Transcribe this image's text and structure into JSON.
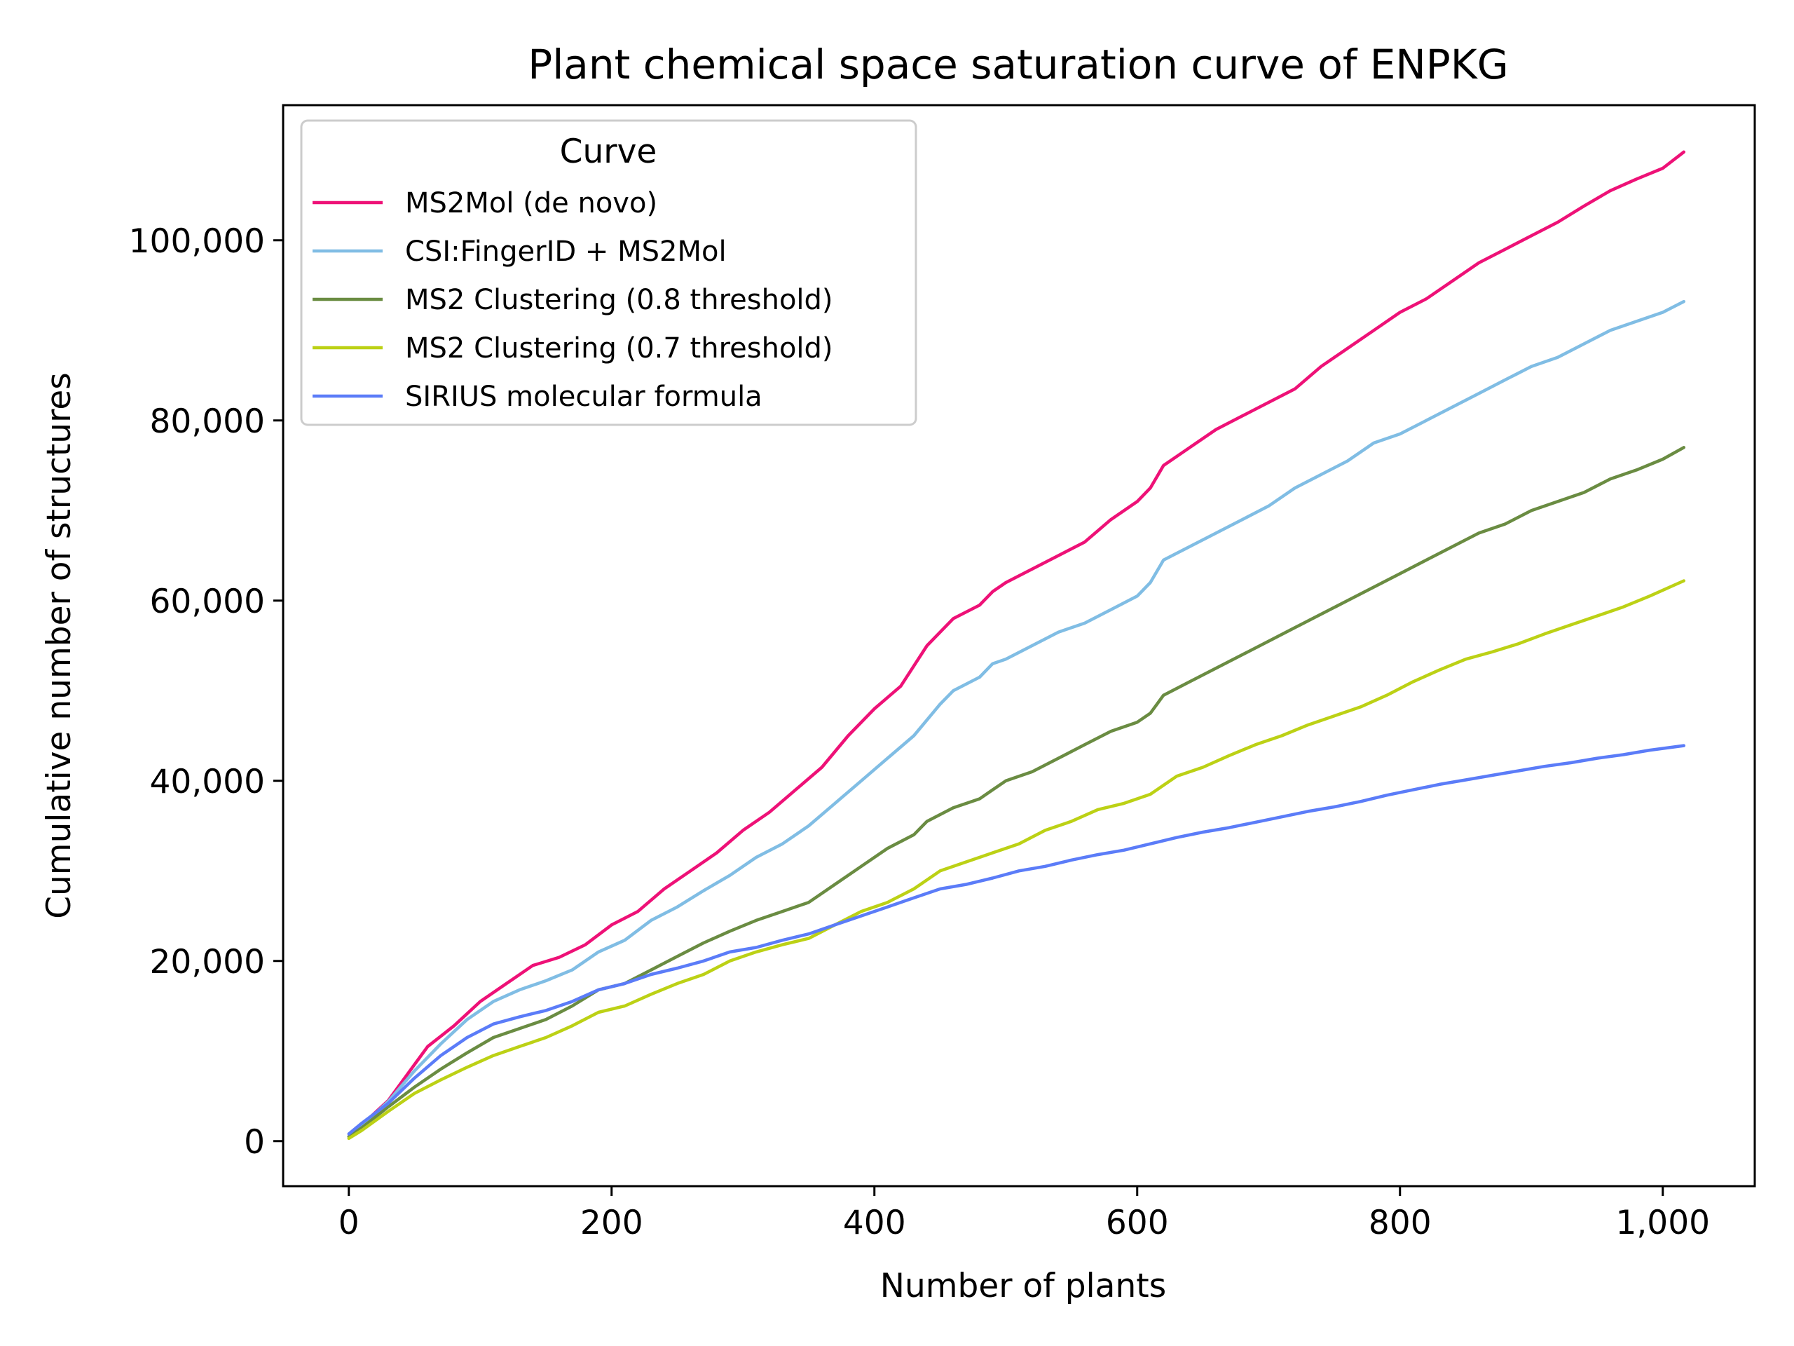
{
  "chart_data": {
    "type": "line",
    "title": "Plant chemical space saturation curve of ENPKG",
    "xlabel": "Number of plants",
    "ylabel": "Cumulative number of structures",
    "xlim": [
      -50,
      1070
    ],
    "ylim": [
      -5000,
      115000
    ],
    "xticks": [
      0,
      200,
      400,
      600,
      800,
      1000
    ],
    "xtick_labels": [
      "0",
      "200",
      "400",
      "600",
      "800",
      "1,000"
    ],
    "yticks": [
      0,
      20000,
      40000,
      60000,
      80000,
      100000
    ],
    "ytick_labels": [
      "0",
      "20,000",
      "40,000",
      "60,000",
      "80,000",
      "100,000"
    ],
    "grid": false,
    "legend": {
      "title": "Curve",
      "position": "top-left"
    },
    "series": [
      {
        "name": "MS2Mol (de novo)",
        "color": "#ee1177",
        "points": [
          [
            0,
            500
          ],
          [
            10,
            1800
          ],
          [
            30,
            4500
          ],
          [
            50,
            8500
          ],
          [
            60,
            10500
          ],
          [
            80,
            12800
          ],
          [
            100,
            15500
          ],
          [
            120,
            17500
          ],
          [
            140,
            19500
          ],
          [
            160,
            20400
          ],
          [
            180,
            21800
          ],
          [
            200,
            24000
          ],
          [
            220,
            25500
          ],
          [
            240,
            28000
          ],
          [
            260,
            30000
          ],
          [
            280,
            32000
          ],
          [
            300,
            34500
          ],
          [
            320,
            36500
          ],
          [
            340,
            39000
          ],
          [
            360,
            41500
          ],
          [
            380,
            45000
          ],
          [
            400,
            48000
          ],
          [
            420,
            50500
          ],
          [
            440,
            55000
          ],
          [
            460,
            58000
          ],
          [
            480,
            59500
          ],
          [
            490,
            61000
          ],
          [
            500,
            62000
          ],
          [
            520,
            63500
          ],
          [
            540,
            65000
          ],
          [
            560,
            66500
          ],
          [
            580,
            69000
          ],
          [
            600,
            71000
          ],
          [
            610,
            72500
          ],
          [
            620,
            75000
          ],
          [
            640,
            77000
          ],
          [
            660,
            79000
          ],
          [
            680,
            80500
          ],
          [
            700,
            82000
          ],
          [
            720,
            83500
          ],
          [
            740,
            86000
          ],
          [
            760,
            88000
          ],
          [
            780,
            90000
          ],
          [
            800,
            92000
          ],
          [
            820,
            93500
          ],
          [
            840,
            95500
          ],
          [
            860,
            97500
          ],
          [
            880,
            99000
          ],
          [
            900,
            100500
          ],
          [
            920,
            102000
          ],
          [
            940,
            103800
          ],
          [
            960,
            105500
          ],
          [
            980,
            106800
          ],
          [
            1000,
            108000
          ],
          [
            1016,
            109800
          ]
        ]
      },
      {
        "name": "CSI:FingerID + MS2Mol",
        "color": "#80bde4",
        "points": [
          [
            0,
            500
          ],
          [
            10,
            1700
          ],
          [
            30,
            4400
          ],
          [
            50,
            7800
          ],
          [
            70,
            10800
          ],
          [
            90,
            13500
          ],
          [
            110,
            15500
          ],
          [
            130,
            16800
          ],
          [
            150,
            17800
          ],
          [
            170,
            19000
          ],
          [
            190,
            21000
          ],
          [
            210,
            22300
          ],
          [
            230,
            24500
          ],
          [
            250,
            26000
          ],
          [
            270,
            27800
          ],
          [
            290,
            29500
          ],
          [
            310,
            31500
          ],
          [
            330,
            33000
          ],
          [
            350,
            35000
          ],
          [
            370,
            37500
          ],
          [
            390,
            40000
          ],
          [
            410,
            42500
          ],
          [
            430,
            45000
          ],
          [
            450,
            48500
          ],
          [
            460,
            50000
          ],
          [
            480,
            51500
          ],
          [
            490,
            53000
          ],
          [
            500,
            53500
          ],
          [
            520,
            55000
          ],
          [
            540,
            56500
          ],
          [
            560,
            57500
          ],
          [
            580,
            59000
          ],
          [
            600,
            60500
          ],
          [
            610,
            62000
          ],
          [
            620,
            64500
          ],
          [
            640,
            66000
          ],
          [
            660,
            67500
          ],
          [
            680,
            69000
          ],
          [
            700,
            70500
          ],
          [
            720,
            72500
          ],
          [
            740,
            74000
          ],
          [
            760,
            75500
          ],
          [
            780,
            77500
          ],
          [
            800,
            78500
          ],
          [
            820,
            80000
          ],
          [
            840,
            81500
          ],
          [
            860,
            83000
          ],
          [
            880,
            84500
          ],
          [
            900,
            86000
          ],
          [
            920,
            87000
          ],
          [
            940,
            88500
          ],
          [
            960,
            90000
          ],
          [
            980,
            91000
          ],
          [
            1000,
            92000
          ],
          [
            1016,
            93200
          ]
        ]
      },
      {
        "name": "MS2 Clustering (0.8 threshold)",
        "color": "#6a8c42",
        "points": [
          [
            0,
            500
          ],
          [
            10,
            1500
          ],
          [
            30,
            3800
          ],
          [
            50,
            6000
          ],
          [
            70,
            8000
          ],
          [
            90,
            9800
          ],
          [
            110,
            11500
          ],
          [
            130,
            12500
          ],
          [
            150,
            13500
          ],
          [
            170,
            15000
          ],
          [
            190,
            16800
          ],
          [
            210,
            17500
          ],
          [
            230,
            19000
          ],
          [
            250,
            20500
          ],
          [
            270,
            22000
          ],
          [
            290,
            23300
          ],
          [
            310,
            24500
          ],
          [
            330,
            25500
          ],
          [
            350,
            26500
          ],
          [
            370,
            28500
          ],
          [
            390,
            30500
          ],
          [
            410,
            32500
          ],
          [
            430,
            34000
          ],
          [
            440,
            35500
          ],
          [
            460,
            37000
          ],
          [
            480,
            38000
          ],
          [
            490,
            39000
          ],
          [
            500,
            40000
          ],
          [
            520,
            41000
          ],
          [
            540,
            42500
          ],
          [
            560,
            44000
          ],
          [
            580,
            45500
          ],
          [
            600,
            46500
          ],
          [
            610,
            47500
          ],
          [
            620,
            49500
          ],
          [
            640,
            51000
          ],
          [
            660,
            52500
          ],
          [
            680,
            54000
          ],
          [
            700,
            55500
          ],
          [
            720,
            57000
          ],
          [
            740,
            58500
          ],
          [
            760,
            60000
          ],
          [
            780,
            61500
          ],
          [
            800,
            63000
          ],
          [
            820,
            64500
          ],
          [
            840,
            66000
          ],
          [
            860,
            67500
          ],
          [
            880,
            68500
          ],
          [
            900,
            70000
          ],
          [
            920,
            71000
          ],
          [
            940,
            72000
          ],
          [
            960,
            73500
          ],
          [
            980,
            74500
          ],
          [
            1000,
            75700
          ],
          [
            1016,
            77000
          ]
        ]
      },
      {
        "name": "MS2 Clustering (0.7 threshold)",
        "color": "#bcd115",
        "points": [
          [
            0,
            300
          ],
          [
            10,
            1200
          ],
          [
            30,
            3300
          ],
          [
            50,
            5300
          ],
          [
            70,
            6800
          ],
          [
            90,
            8200
          ],
          [
            110,
            9500
          ],
          [
            130,
            10500
          ],
          [
            150,
            11500
          ],
          [
            170,
            12800
          ],
          [
            190,
            14300
          ],
          [
            210,
            15000
          ],
          [
            230,
            16300
          ],
          [
            250,
            17500
          ],
          [
            270,
            18500
          ],
          [
            290,
            20000
          ],
          [
            310,
            21000
          ],
          [
            330,
            21800
          ],
          [
            350,
            22500
          ],
          [
            370,
            24000
          ],
          [
            390,
            25500
          ],
          [
            410,
            26500
          ],
          [
            430,
            28000
          ],
          [
            450,
            30000
          ],
          [
            470,
            31000
          ],
          [
            490,
            32000
          ],
          [
            510,
            33000
          ],
          [
            530,
            34500
          ],
          [
            550,
            35500
          ],
          [
            570,
            36800
          ],
          [
            590,
            37500
          ],
          [
            610,
            38500
          ],
          [
            630,
            40500
          ],
          [
            650,
            41500
          ],
          [
            670,
            42800
          ],
          [
            690,
            44000
          ],
          [
            710,
            45000
          ],
          [
            730,
            46200
          ],
          [
            750,
            47200
          ],
          [
            770,
            48200
          ],
          [
            790,
            49500
          ],
          [
            810,
            51000
          ],
          [
            830,
            52300
          ],
          [
            850,
            53500
          ],
          [
            870,
            54300
          ],
          [
            890,
            55200
          ],
          [
            910,
            56300
          ],
          [
            930,
            57300
          ],
          [
            950,
            58300
          ],
          [
            970,
            59300
          ],
          [
            990,
            60500
          ],
          [
            1016,
            62200
          ]
        ]
      },
      {
        "name": "SIRIUS molecular formula",
        "color": "#5b7cf8",
        "points": [
          [
            0,
            800
          ],
          [
            10,
            2000
          ],
          [
            30,
            4200
          ],
          [
            50,
            7000
          ],
          [
            70,
            9500
          ],
          [
            90,
            11500
          ],
          [
            110,
            13000
          ],
          [
            130,
            13800
          ],
          [
            150,
            14500
          ],
          [
            170,
            15500
          ],
          [
            190,
            16800
          ],
          [
            210,
            17500
          ],
          [
            230,
            18500
          ],
          [
            250,
            19200
          ],
          [
            270,
            20000
          ],
          [
            290,
            21000
          ],
          [
            310,
            21500
          ],
          [
            330,
            22300
          ],
          [
            350,
            23000
          ],
          [
            370,
            24000
          ],
          [
            390,
            25000
          ],
          [
            410,
            26000
          ],
          [
            430,
            27000
          ],
          [
            450,
            28000
          ],
          [
            470,
            28500
          ],
          [
            490,
            29200
          ],
          [
            510,
            30000
          ],
          [
            530,
            30500
          ],
          [
            550,
            31200
          ],
          [
            570,
            31800
          ],
          [
            590,
            32300
          ],
          [
            610,
            33000
          ],
          [
            630,
            33700
          ],
          [
            650,
            34300
          ],
          [
            670,
            34800
          ],
          [
            690,
            35400
          ],
          [
            710,
            36000
          ],
          [
            730,
            36600
          ],
          [
            750,
            37100
          ],
          [
            770,
            37700
          ],
          [
            790,
            38400
          ],
          [
            810,
            39000
          ],
          [
            830,
            39600
          ],
          [
            850,
            40100
          ],
          [
            870,
            40600
          ],
          [
            890,
            41100
          ],
          [
            910,
            41600
          ],
          [
            930,
            42000
          ],
          [
            950,
            42500
          ],
          [
            970,
            42900
          ],
          [
            990,
            43400
          ],
          [
            1016,
            43900
          ]
        ]
      }
    ]
  }
}
